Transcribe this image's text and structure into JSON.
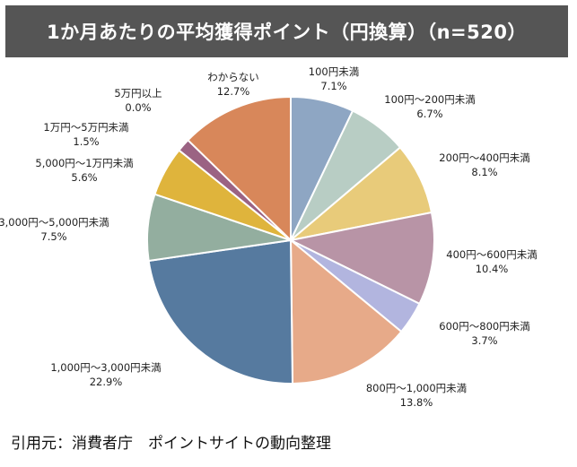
{
  "title": "1か月あたりの平均獲得ポイント（円換算）（n=520）",
  "source": "引用元：消費者庁　ポイントサイトの動向整理",
  "chart_data": {
    "type": "pie",
    "title": "1か月あたりの平均獲得ポイント（円換算）（n=520）",
    "unit": "%",
    "slices": [
      {
        "label": "100円未満",
        "value": 7.1,
        "display": "7.1%",
        "color": "#8ea6c3"
      },
      {
        "label": "100円～200円未満",
        "value": 6.7,
        "display": "6.7%",
        "color": "#b8cdc4"
      },
      {
        "label": "200円～400円未満",
        "value": 8.1,
        "display": "8.1%",
        "color": "#e8cb7a"
      },
      {
        "label": "400円～600円未満",
        "value": 10.4,
        "display": "10.4%",
        "color": "#b894a6"
      },
      {
        "label": "600円～800円未満",
        "value": 3.7,
        "display": "3.7%",
        "color": "#b2b5df"
      },
      {
        "label": "800円～1,000円未満",
        "value": 13.8,
        "display": "13.8%",
        "color": "#e7aa89"
      },
      {
        "label": "1,000円～3,000円未満",
        "value": 22.9,
        "display": "22.9%",
        "color": "#567a9f"
      },
      {
        "label": "3,000円～5,000円未満",
        "value": 7.5,
        "display": "7.5%",
        "color": "#93ae9f"
      },
      {
        "label": "5,000円～1万円未満",
        "value": 5.6,
        "display": "5.6%",
        "color": "#dfb43c"
      },
      {
        "label": "1万円～5万円未満",
        "value": 1.5,
        "display": "1.5%",
        "color": "#9b6383"
      },
      {
        "label": "5万円以上",
        "value": 0.0,
        "display": "0.0%",
        "color": "#8a4a6a"
      },
      {
        "label": "わからない",
        "value": 12.7,
        "display": "12.7%",
        "color": "#d8875a"
      }
    ]
  }
}
